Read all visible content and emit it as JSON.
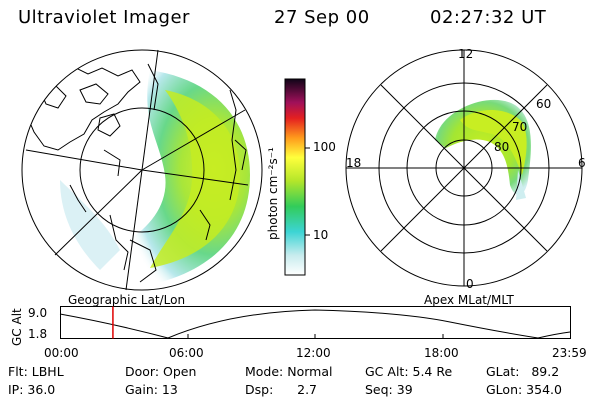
{
  "header": {
    "instrument": "Ultraviolet Imager",
    "date": "27 Sep 00",
    "time": "02:27:32 UT"
  },
  "colorbar": {
    "label": "photon cm⁻²s⁻¹",
    "ticks": [
      "100",
      "10"
    ]
  },
  "left_panel": {
    "caption": "Geographic Lat/Lon"
  },
  "right_panel": {
    "caption": "Apex MLat/MLT",
    "mlt_labels": {
      "top": "12",
      "left": "18",
      "right": "6",
      "bottom": "0"
    },
    "mlat_labels": [
      "60",
      "70",
      "80"
    ]
  },
  "timeline": {
    "ylabel": "GC Alt",
    "yticks": [
      "9.0",
      "1.8"
    ],
    "xticks": [
      "00:00",
      "06:00",
      "12:00",
      "18:00",
      "23:59"
    ],
    "marker_time_fraction": 0.102
  },
  "info": {
    "flt": "Flt: LBHL",
    "ip": "IP: 36.0",
    "door": "Door: Open",
    "gain": "Gain: 13",
    "mode": "Mode: Normal",
    "dsp": "Dsp:      2.7",
    "gc_alt": "GC Alt: 5.4 Re",
    "seq": "Seq: 39",
    "glat": "GLat:   89.2",
    "glon": "GLon: 354.0"
  },
  "colors": {
    "aurora_outer": "#c8ecee",
    "aurora_mid": "#7fd87f",
    "aurora_inner": "#c8ee2a",
    "marker": "#e00000"
  }
}
